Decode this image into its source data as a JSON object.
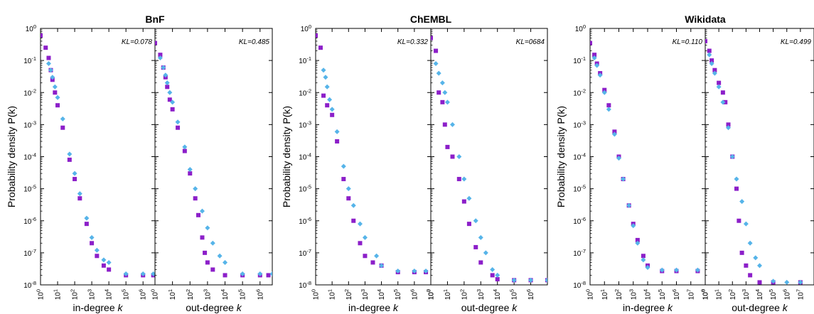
{
  "chart_data": [
    {
      "type": "scatter",
      "title": "BnF",
      "ylabel": "Probability density P(k)",
      "y_scale": "log",
      "ylim": [
        1e-08,
        1
      ],
      "y_ticks": [
        "10^0",
        "10^-1",
        "10^-2",
        "10^-3",
        "10^-4",
        "10^-5",
        "10^-6",
        "10^-7",
        "10^-8"
      ],
      "colors": {
        "purple": "#8c1fc9",
        "blue": "#56b4e9"
      },
      "panels": [
        {
          "xlabel": "in-degree k",
          "x_scale": "log",
          "xlim": [
            1,
            5000000
          ],
          "x_ticks": [
            "10^0",
            "10^1",
            "10^2",
            "10^3",
            "10^4",
            "10^5",
            "10^6"
          ],
          "annotation": "KL=0.078",
          "series": [
            {
              "marker": "square",
              "color": "#8c1fc9",
              "x": [
                1,
                2,
                3,
                4,
                5,
                7,
                10,
                20,
                50,
                100,
                200,
                500,
                1000,
                2000,
                5000,
                10000,
                100000,
                1000000,
                4000000
              ],
              "y": [
                0.6,
                0.25,
                0.12,
                0.05,
                0.025,
                0.01,
                0.004,
                0.0008,
                8e-05,
                2e-05,
                5e-06,
                8e-07,
                2e-07,
                8e-08,
                4e-08,
                3e-08,
                2e-08,
                2e-08,
                2e-08
              ]
            },
            {
              "marker": "diamond",
              "color": "#56b4e9",
              "x": [
                3,
                4,
                5,
                7,
                10,
                20,
                50,
                100,
                200,
                500,
                1000,
                2000,
                5000,
                10000,
                100000,
                1000000,
                4000000
              ],
              "y": [
                0.08,
                0.05,
                0.03,
                0.015,
                0.007,
                0.0015,
                0.00012,
                3e-05,
                7e-06,
                1.2e-06,
                3e-07,
                1.2e-07,
                6e-08,
                5e-08,
                2.2e-08,
                2.2e-08,
                2.2e-08
              ]
            }
          ]
        },
        {
          "xlabel": "out-degree k",
          "x_scale": "log",
          "xlim": [
            1,
            5000000
          ],
          "x_ticks": [
            "10^0",
            "10^1",
            "10^2",
            "10^3",
            "10^4",
            "10^5",
            "10^6"
          ],
          "annotation": "KL=0.485",
          "series": [
            {
              "marker": "square",
              "color": "#8c1fc9",
              "x": [
                1,
                2,
                3,
                4,
                5,
                7,
                10,
                20,
                50,
                100,
                200,
                300,
                500,
                700,
                1000,
                2000,
                10000,
                100000,
                1000000,
                3000000
              ],
              "y": [
                0.35,
                0.15,
                0.06,
                0.03,
                0.015,
                0.006,
                0.003,
                0.0008,
                0.00015,
                3e-05,
                5e-06,
                1.5e-06,
                3e-07,
                1e-07,
                5e-08,
                3e-08,
                2e-08,
                2e-08,
                2e-08,
                2e-08
              ]
            },
            {
              "marker": "diamond",
              "color": "#56b4e9",
              "x": [
                2,
                3,
                4,
                5,
                7,
                10,
                20,
                50,
                100,
                200,
                500,
                1000,
                2000,
                5000,
                10000,
                100000,
                1000000,
                5000000
              ],
              "y": [
                0.12,
                0.06,
                0.035,
                0.02,
                0.01,
                0.005,
                0.0012,
                0.0002,
                4e-05,
                1e-05,
                2e-06,
                6e-07,
                2e-07,
                8e-08,
                5e-08,
                2.2e-08,
                2.2e-08,
                2.2e-08
              ]
            }
          ]
        }
      ]
    },
    {
      "type": "scatter",
      "title": "ChEMBL",
      "ylabel": "Probability density P(k)",
      "y_scale": "log",
      "ylim": [
        1e-08,
        1
      ],
      "y_ticks": [
        "10^0",
        "10^-1",
        "10^-2",
        "10^-3",
        "10^-4",
        "10^-5",
        "10^-6",
        "10^-7",
        "10^-8"
      ],
      "colors": {
        "purple": "#8c1fc9",
        "blue": "#56b4e9"
      },
      "panels": [
        {
          "xlabel": "in-degree k",
          "x_scale": "log",
          "xlim": [
            1,
            10000000
          ],
          "x_ticks": [
            "10^0",
            "10^1",
            "10^2",
            "10^3",
            "10^4",
            "10^5",
            "10^6",
            "10^7"
          ],
          "annotation": "KL=0.332",
          "series": [
            {
              "marker": "square",
              "color": "#8c1fc9",
              "x": [
                1,
                2,
                3,
                5,
                10,
                20,
                50,
                100,
                200,
                500,
                1000,
                3000,
                10000,
                100000,
                1000000,
                5000000
              ],
              "y": [
                0.6,
                0.25,
                0.008,
                0.004,
                0.002,
                0.0003,
                2e-05,
                5e-06,
                1e-06,
                2e-07,
                8e-08,
                5e-08,
                4e-08,
                2.5e-08,
                2.5e-08,
                2.5e-08
              ]
            },
            {
              "marker": "diamond",
              "color": "#56b4e9",
              "x": [
                3,
                4,
                5,
                7,
                10,
                20,
                50,
                100,
                200,
                500,
                1000,
                5000,
                10000,
                100000,
                1000000,
                5000000
              ],
              "y": [
                0.05,
                0.03,
                0.015,
                0.006,
                0.003,
                0.0006,
                5e-05,
                1e-05,
                3e-06,
                8e-07,
                3e-07,
                8e-08,
                4e-08,
                2.7e-08,
                2.7e-08,
                2.7e-08
              ]
            }
          ]
        },
        {
          "xlabel": "out-degree k",
          "x_scale": "log",
          "xlim": [
            1,
            10000000
          ],
          "x_ticks": [
            "10^0",
            "10^1",
            "10^2",
            "10^3",
            "10^4",
            "10^5",
            "10^6"
          ],
          "annotation": "KL=0684",
          "series": [
            {
              "marker": "square",
              "color": "#8c1fc9",
              "x": [
                1,
                2,
                3,
                5,
                7,
                10,
                20,
                50,
                100,
                200,
                500,
                1000,
                5000,
                10000,
                100000,
                1000000,
                10000000
              ],
              "y": [
                0.5,
                0.2,
                0.01,
                0.005,
                0.001,
                0.0002,
                0.0001,
                2e-05,
                4e-06,
                8e-07,
                1.5e-07,
                5e-08,
                2e-08,
                1.5e-08,
                1.4e-08,
                1.4e-08,
                1.4e-08
              ]
            },
            {
              "marker": "diamond",
              "color": "#56b4e9",
              "x": [
                2,
                3,
                5,
                7,
                10,
                20,
                50,
                100,
                200,
                500,
                1000,
                2000,
                5000,
                10000,
                100000,
                1000000,
                10000000
              ],
              "y": [
                0.08,
                0.04,
                0.02,
                0.01,
                0.005,
                0.001,
                0.0001,
                2e-05,
                5e-06,
                1e-06,
                3e-07,
                1e-07,
                3e-08,
                2e-08,
                1.4e-08,
                1.4e-08,
                1.4e-08
              ]
            }
          ]
        }
      ]
    },
    {
      "type": "scatter",
      "title": "Wikidata",
      "ylabel": "Probability density P(k)",
      "y_scale": "log",
      "ylim": [
        1e-08,
        1
      ],
      "y_ticks": [
        "10^0",
        "10^-1",
        "10^-2",
        "10^-3",
        "10^-4",
        "10^-5",
        "10^-6",
        "10^-7",
        "10^-8"
      ],
      "colors": {
        "purple": "#8c1fc9",
        "blue": "#56b4e9"
      },
      "panels": [
        {
          "xlabel": "in-degree k",
          "x_scale": "log",
          "xlim": [
            1,
            100000000
          ],
          "x_ticks": [
            "10^0",
            "10^1",
            "10^2",
            "10^3",
            "10^4",
            "10^5",
            "10^6",
            "10^7",
            "10^8"
          ],
          "annotation": "KL=0.110",
          "series": [
            {
              "marker": "square",
              "color": "#8c1fc9",
              "x": [
                1,
                2,
                3,
                5,
                10,
                20,
                50,
                100,
                200,
                500,
                1000,
                2000,
                5000,
                10000,
                100000,
                1000000,
                30000000
              ],
              "y": [
                0.35,
                0.15,
                0.08,
                0.04,
                0.012,
                0.004,
                0.0006,
                0.0001,
                2e-05,
                3e-06,
                8e-07,
                2.5e-07,
                8e-08,
                4e-08,
                2.7e-08,
                2.7e-08,
                2.7e-08
              ]
            },
            {
              "marker": "diamond",
              "color": "#56b4e9",
              "x": [
                2,
                3,
                5,
                10,
                20,
                50,
                100,
                200,
                500,
                1000,
                2000,
                5000,
                10000,
                100000,
                1000000,
                30000000
              ],
              "y": [
                0.12,
                0.07,
                0.035,
                0.01,
                0.003,
                0.0005,
                9e-05,
                2e-05,
                3e-06,
                7e-07,
                2e-07,
                6e-08,
                3.5e-08,
                2.9e-08,
                2.9e-08,
                2.9e-08
              ]
            }
          ]
        },
        {
          "xlabel": "out-degree k",
          "x_scale": "log",
          "xlim": [
            1,
            100000000
          ],
          "x_ticks": [
            "10^0",
            "10^1",
            "10^2",
            "10^3",
            "10^4",
            "10^5",
            "10^6",
            "10^7"
          ],
          "annotation": "KL=0.499",
          "series": [
            {
              "marker": "square",
              "color": "#8c1fc9",
              "x": [
                1,
                2,
                3,
                5,
                10,
                20,
                30,
                50,
                100,
                200,
                300,
                500,
                1000,
                2000,
                10000,
                100000,
                10000000
              ],
              "y": [
                0.4,
                0.2,
                0.1,
                0.05,
                0.02,
                0.01,
                0.005,
                0.001,
                0.0001,
                1e-05,
                1e-06,
                1e-07,
                4e-08,
                2e-08,
                1.2e-08,
                1.2e-08,
                1.2e-08
              ]
            },
            {
              "marker": "diamond",
              "color": "#56b4e9",
              "x": [
                2,
                3,
                5,
                10,
                20,
                50,
                100,
                200,
                500,
                1000,
                2000,
                5000,
                10000,
                100000,
                1000000,
                10000000
              ],
              "y": [
                0.15,
                0.08,
                0.04,
                0.015,
                0.005,
                0.0008,
                0.0001,
                2e-05,
                4e-06,
                8e-07,
                2e-07,
                7e-08,
                4e-08,
                1.3e-08,
                1.2e-08,
                1.2e-08
              ]
            }
          ]
        }
      ]
    }
  ]
}
